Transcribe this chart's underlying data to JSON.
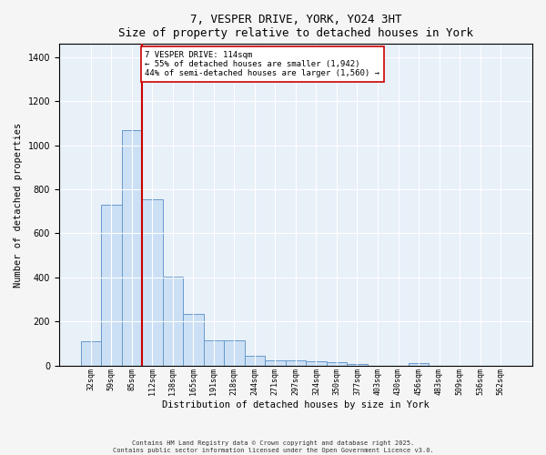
{
  "title": "7, VESPER DRIVE, YORK, YO24 3HT",
  "subtitle": "Size of property relative to detached houses in York",
  "xlabel": "Distribution of detached houses by size in York",
  "ylabel": "Number of detached properties",
  "categories": [
    "32sqm",
    "59sqm",
    "85sqm",
    "112sqm",
    "138sqm",
    "165sqm",
    "191sqm",
    "218sqm",
    "244sqm",
    "271sqm",
    "297sqm",
    "324sqm",
    "350sqm",
    "377sqm",
    "403sqm",
    "430sqm",
    "456sqm",
    "483sqm",
    "509sqm",
    "536sqm",
    "562sqm"
  ],
  "values": [
    110,
    730,
    1070,
    755,
    405,
    235,
    115,
    115,
    45,
    25,
    25,
    20,
    15,
    5,
    0,
    0,
    10,
    0,
    0,
    0,
    0
  ],
  "bar_color": "#cce0f5",
  "bar_edge_color": "#6699cc",
  "vline_index": 3,
  "vline_color": "#cc0000",
  "annotation_text": "7 VESPER DRIVE: 114sqm\n← 55% of detached houses are smaller (1,942)\n44% of semi-detached houses are larger (1,560) →",
  "annotation_box_color": "#ffffff",
  "annotation_box_edge": "#cc0000",
  "ylim": [
    0,
    1460
  ],
  "background_color": "#e8f0f8",
  "fig_background": "#f5f5f5",
  "grid_color": "#ffffff",
  "footer1": "Contains HM Land Registry data © Crown copyright and database right 2025.",
  "footer2": "Contains public sector information licensed under the Open Government Licence v3.0."
}
